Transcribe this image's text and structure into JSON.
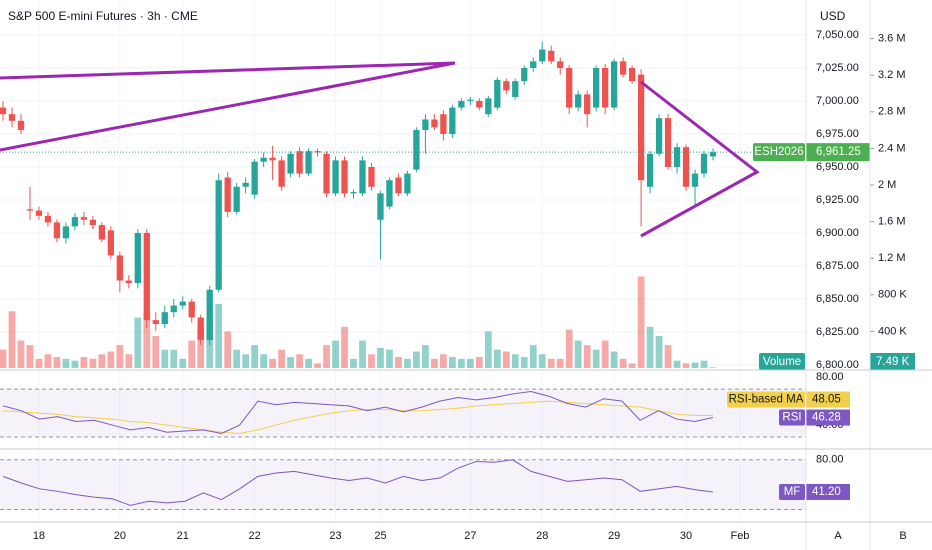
{
  "header": {
    "title": "S&P 500 E-mini Futures · 3h · CME",
    "currency": "USD",
    "scale_buttons": [
      "A",
      "B"
    ]
  },
  "chart_data": {
    "type": "candlestick",
    "symbol": "ESH2026",
    "up_color": "#26a69a",
    "down_color": "#ef5350",
    "ylim": [
      6796.2,
      7076.5
    ],
    "yticks": [
      {
        "value": 6800,
        "label": "6,800.00"
      },
      {
        "value": 6825,
        "label": "6,825.00"
      },
      {
        "value": 6850,
        "label": "6,850.00"
      },
      {
        "value": 6875,
        "label": "6,875.00"
      },
      {
        "value": 6900,
        "label": "6,900.00"
      },
      {
        "value": 6925,
        "label": "6,925.00"
      },
      {
        "value": 6950,
        "label": "6,950.00"
      },
      {
        "value": 6975,
        "label": "6,975.00"
      },
      {
        "value": 7000,
        "label": "7,000.00"
      },
      {
        "value": 7025,
        "label": "7,025.00"
      },
      {
        "value": 7050,
        "label": "7,050.00"
      }
    ],
    "xticks": [
      {
        "value": 4,
        "label": "18"
      },
      {
        "value": 13,
        "label": "20"
      },
      {
        "value": 20,
        "label": "21"
      },
      {
        "value": 28,
        "label": "22"
      },
      {
        "value": 37,
        "label": "23"
      },
      {
        "value": 42,
        "label": "25"
      },
      {
        "value": 52,
        "label": "27"
      },
      {
        "value": 60,
        "label": "28"
      },
      {
        "value": 68,
        "label": "29"
      },
      {
        "value": 76,
        "label": "30"
      },
      {
        "value": 82,
        "label": "Feb"
      }
    ],
    "last_price": {
      "value": 6961.25,
      "label": "6,961.25"
    },
    "candles": [
      [
        6995,
        7000,
        6985,
        6990
      ],
      [
        6990,
        6995,
        6980,
        6985
      ],
      [
        6985,
        6990,
        6975,
        6978
      ],
      [
        6918,
        6935,
        6910,
        6917
      ],
      [
        6917,
        6920,
        6910,
        6913
      ],
      [
        6913,
        6916,
        6905,
        6908
      ],
      [
        6908,
        6910,
        6893,
        6896
      ],
      [
        6896,
        6908,
        6892,
        6905
      ],
      [
        6905,
        6915,
        6902,
        6912
      ],
      [
        6912,
        6916,
        6906,
        6910
      ],
      [
        6910,
        6913,
        6903,
        6906
      ],
      [
        6906,
        6908,
        6893,
        6895
      ],
      [
        6902,
        6905,
        6880,
        6883
      ],
      [
        6883,
        6886,
        6855,
        6864
      ],
      [
        6864,
        6868,
        6858,
        6862
      ],
      [
        6862,
        6903,
        6858,
        6900
      ],
      [
        6900,
        6903,
        6828,
        6834
      ],
      [
        6834,
        6840,
        6826,
        6831
      ],
      [
        6831,
        6845,
        6828,
        6840
      ],
      [
        6840,
        6850,
        6836,
        6845
      ],
      [
        6845,
        6852,
        6842,
        6848
      ],
      [
        6848,
        6850,
        6832,
        6836
      ],
      [
        6836,
        6838,
        6815,
        6819
      ],
      [
        6819,
        6860,
        6815,
        6857
      ],
      [
        6857,
        6945,
        6855,
        6940
      ],
      [
        6942,
        6946,
        6912,
        6916
      ],
      [
        6916,
        6938,
        6914,
        6935
      ],
      [
        6935,
        6942,
        6930,
        6938
      ],
      [
        6929,
        6956,
        6926,
        6954
      ],
      [
        6954,
        6961,
        6950,
        6957
      ],
      [
        6957,
        6966,
        6940,
        6955
      ],
      [
        6955,
        6958,
        6932,
        6935
      ],
      [
        6945,
        6962,
        6942,
        6960
      ],
      [
        6962,
        6965,
        6942,
        6945
      ],
      [
        6945,
        6964,
        6943,
        6962
      ],
      [
        6962,
        6964,
        6958,
        6961
      ],
      [
        6960,
        6962,
        6927,
        6930
      ],
      [
        6930,
        6958,
        6928,
        6955
      ],
      [
        6955,
        6958,
        6927,
        6930
      ],
      [
        6930,
        6933,
        6926,
        6931
      ],
      [
        6930,
        6958,
        6928,
        6955
      ],
      [
        6950,
        6953,
        6932,
        6935
      ],
      [
        6910,
        6932,
        6880,
        6930
      ],
      [
        6920,
        6942,
        6918,
        6940
      ],
      [
        6942,
        6945,
        6928,
        6930
      ],
      [
        6930,
        6947,
        6928,
        6945
      ],
      [
        6948,
        6980,
        6946,
        6978
      ],
      [
        6978,
        6990,
        6960,
        6986
      ],
      [
        6986,
        6990,
        6978,
        6980
      ],
      [
        6990,
        6993,
        6970,
        6975
      ],
      [
        6975,
        6997,
        6972,
        6995
      ],
      [
        6995,
        7002,
        6993,
        7000
      ],
      [
        7000,
        7003,
        6997,
        7001
      ],
      [
        7000,
        7002,
        6993,
        6995
      ],
      [
        6990,
        7004,
        6988,
        7002
      ],
      [
        6995,
        7018,
        6993,
        7016
      ],
      [
        7015,
        7017,
        7005,
        7008
      ],
      [
        7003,
        7017,
        7001,
        7015
      ],
      [
        7015,
        7027,
        7012,
        7025
      ],
      [
        7025,
        7033,
        7022,
        7030
      ],
      [
        7030,
        7045,
        7028,
        7039
      ],
      [
        7038,
        7042,
        7028,
        7030
      ],
      [
        7030,
        7033,
        7020,
        7025
      ],
      [
        7025,
        7027,
        6990,
        6995
      ],
      [
        6995,
        7008,
        6992,
        7005
      ],
      [
        7005,
        7008,
        6980,
        6990
      ],
      [
        6995,
        7027,
        6992,
        7025
      ],
      [
        7025,
        7028,
        6990,
        6995
      ],
      [
        6995,
        7032,
        6993,
        7030
      ],
      [
        7030,
        7033,
        7018,
        7020
      ],
      [
        7025,
        7027,
        7013,
        7015
      ],
      [
        7020,
        7024,
        6905,
        6940
      ],
      [
        6935,
        6962,
        6930,
        6960
      ],
      [
        6960,
        6990,
        6958,
        6987
      ],
      [
        6987,
        6990,
        6948,
        6950
      ],
      [
        6950,
        6968,
        6945,
        6965
      ],
      [
        6965,
        6967,
        6932,
        6935
      ],
      [
        6935,
        6948,
        6920,
        6945
      ],
      [
        6945,
        6962,
        6942,
        6960
      ],
      [
        6958,
        6964,
        6955,
        6961.25
      ]
    ],
    "volume": {
      "name": "Volume",
      "ylim": [
        0,
        4.0
      ],
      "yticks": [
        {
          "value": 0.4,
          "label": "400 K"
        },
        {
          "value": 0.8,
          "label": "800 K"
        },
        {
          "value": 1.2,
          "label": "1.2 M"
        },
        {
          "value": 1.6,
          "label": "1.6 M"
        },
        {
          "value": 2.0,
          "label": "2 M"
        },
        {
          "value": 2.4,
          "label": "2.4 M"
        },
        {
          "value": 2.8,
          "label": "2.8 M"
        },
        {
          "value": 3.2,
          "label": "3.2 M"
        },
        {
          "value": 3.6,
          "label": "3.6 M"
        }
      ],
      "values": [
        0.2,
        0.62,
        0.3,
        0.25,
        0.1,
        0.15,
        0.12,
        0.1,
        0.08,
        0.12,
        0.1,
        0.15,
        0.18,
        0.25,
        0.15,
        0.55,
        0.6,
        0.35,
        0.2,
        0.2,
        0.1,
        0.3,
        0.45,
        0.55,
        0.7,
        0.4,
        0.2,
        0.15,
        0.25,
        0.15,
        0.1,
        0.2,
        0.12,
        0.15,
        0.1,
        0.05,
        0.25,
        0.3,
        0.45,
        0.1,
        0.3,
        0.15,
        0.22,
        0.2,
        0.12,
        0.1,
        0.18,
        0.25,
        0.1,
        0.15,
        0.12,
        0.1,
        0.1,
        0.12,
        0.4,
        0.2,
        0.18,
        0.15,
        0.12,
        0.25,
        0.15,
        0.1,
        0.1,
        0.42,
        0.3,
        0.25,
        0.2,
        0.3,
        0.18,
        0.1,
        0.05,
        1.0,
        0.45,
        0.35,
        0.25,
        0.08,
        0.05,
        0.06,
        0.08,
        0.00749
      ],
      "last_label": "7.49 K"
    },
    "rsi": {
      "name": "RSI",
      "color": "#7e57c2",
      "ylim": [
        20,
        86
      ],
      "yticks": [
        {
          "value": 80,
          "label": "80.00"
        },
        {
          "value": 40,
          "label": "40.00"
        }
      ],
      "levels": [
        70,
        30
      ],
      "values": [
        56,
        52,
        45,
        47,
        43,
        44,
        40,
        36,
        38,
        34,
        35,
        36,
        33,
        40,
        60,
        57,
        59,
        58,
        57,
        56,
        52,
        55,
        51,
        55,
        60,
        63,
        61,
        63,
        66,
        68,
        64,
        58,
        55,
        62,
        60,
        44,
        52,
        45,
        43,
        46.28
      ],
      "ma": {
        "name": "RSI-based MA",
        "color": "#f2d04b",
        "values": [
          52,
          51,
          50,
          49,
          47,
          46,
          45,
          43,
          42,
          40,
          38,
          36,
          34,
          33,
          36,
          40,
          44,
          47,
          50,
          52,
          53,
          53,
          52,
          52,
          53,
          54,
          56,
          57,
          58,
          59,
          60,
          59,
          58,
          57,
          56,
          55,
          52,
          49,
          48,
          48.05
        ]
      }
    },
    "mf": {
      "name": "MF",
      "color": "#7e57c2",
      "ylim": [
        5,
        93
      ],
      "yticks": [
        {
          "value": 80,
          "label": "80.00"
        }
      ],
      "levels": [
        80,
        20
      ],
      "values": [
        60,
        52,
        45,
        42,
        38,
        35,
        33,
        25,
        30,
        28,
        30,
        40,
        32,
        45,
        60,
        64,
        66,
        62,
        58,
        55,
        58,
        52,
        60,
        55,
        58,
        70,
        78,
        77,
        80,
        66,
        60,
        54,
        56,
        58,
        56,
        42,
        45,
        48,
        44,
        41.2
      ],
      "value_labels": [
        null,
        null,
        null,
        null,
        null,
        null,
        null,
        null,
        null,
        null,
        null,
        null,
        null,
        null,
        null,
        null,
        null,
        null,
        null,
        null,
        null,
        null,
        null,
        null,
        null,
        null,
        null,
        null,
        null,
        null,
        null,
        null,
        null,
        null,
        null,
        null,
        null,
        null,
        null,
        "41.20"
      ]
    }
  }
}
